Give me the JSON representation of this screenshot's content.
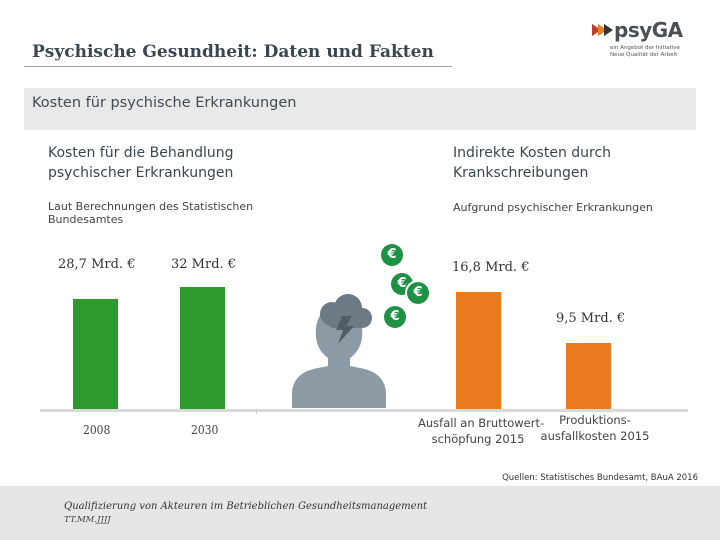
{
  "slide": {
    "title": "Psychische Gesundheit: Daten und Fakten",
    "section": "Kosten für psychische Erkrankungen"
  },
  "logo": {
    "name": "psyGA",
    "tagline_line1": "ein Angebot der Initiative",
    "tagline_line2": "Neue Qualität der Arbeit"
  },
  "left_panel": {
    "heading": "Kosten für die Behandlung psychischer Erkrankungen",
    "note": "Laut Berechnungen des Statistischen Bundesamtes"
  },
  "right_panel": {
    "heading": "Indirekte Kosten durch Krankschreibungen",
    "note": "Aufgrund psychischer Erkrankungen"
  },
  "icons": {
    "coin": "euro-coin-icon",
    "coin_symbol": "€",
    "person": "stressed-person-icon",
    "cloud": "storm-cloud-icon"
  },
  "colors": {
    "green": "#2e9a2e",
    "orange": "#ea7a1e",
    "coin_green": "#1f9145"
  },
  "chart_data": [
    {
      "type": "bar",
      "categories": [
        "2008",
        "2030"
      ],
      "values": [
        28.7,
        32
      ],
      "value_labels": [
        "28,7 Mrd. €",
        "32 Mrd. €"
      ],
      "color": "#2e9a2e",
      "ylim": [
        0,
        40
      ]
    },
    {
      "type": "bar",
      "categories": [
        "Ausfall an Bruttowert-schöpfung 2015",
        "Produktions-ausfallkosten 2015"
      ],
      "category_lines": [
        [
          "Ausfall an Bruttowert-",
          "schöpfung 2015"
        ],
        [
          "Produktions-",
          "ausfallkosten 2015"
        ]
      ],
      "values": [
        16.8,
        9.5
      ],
      "value_labels": [
        "16,8 Mrd. €",
        "9,5 Mrd. €"
      ],
      "color": "#ea7a1e",
      "ylim": [
        0,
        20
      ]
    }
  ],
  "sources": "Quellen: Statistisches Bundesamt, BAuA 2016",
  "footer": {
    "line1": "Qualifizierung von Akteuren im Betrieblichen Gesundheitsmanagement",
    "line2": "TT.MM.JJJJ"
  }
}
